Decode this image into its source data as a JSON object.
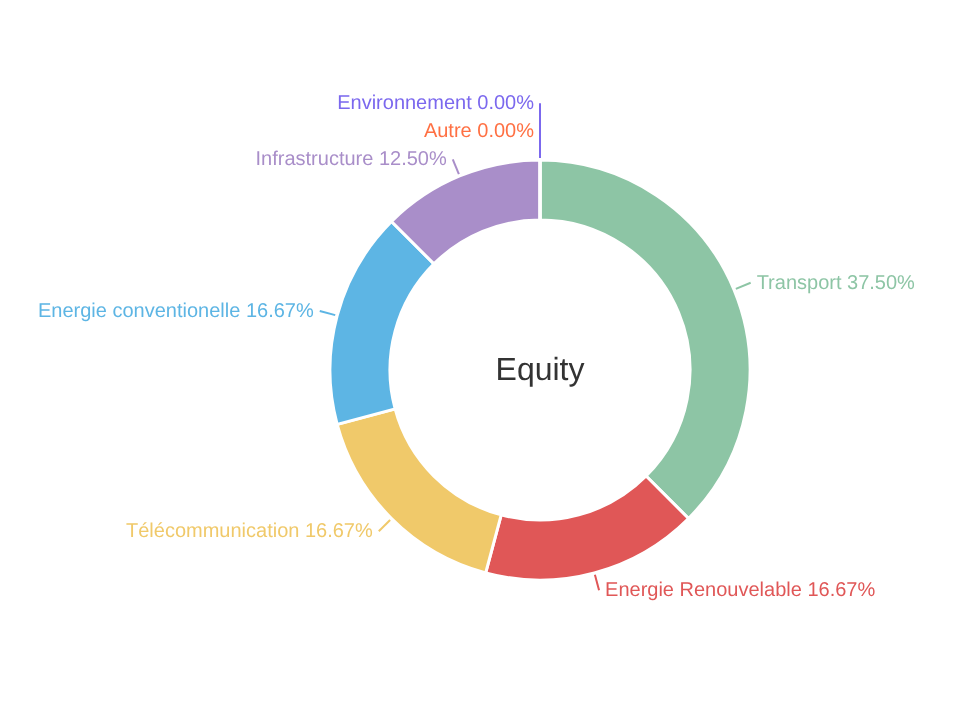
{
  "chart_data": {
    "type": "donut",
    "title": "Equity",
    "categories": [
      "Transport",
      "Energie Renouvelable",
      "Télécommunication",
      "Energie conventionelle",
      "Infrastructure",
      "Autre",
      "Environnement"
    ],
    "values": [
      37.5,
      16.67,
      16.67,
      16.67,
      12.5,
      0,
      0
    ],
    "value_labels": [
      "37.50%",
      "16.67%",
      "16.67%",
      "16.67%",
      "12.50%",
      "0.00%",
      "0.00%"
    ],
    "colors": [
      "#8dc5a5",
      "#e05757",
      "#f0c96a",
      "#5db5e4",
      "#a98ec9",
      "#ff7043",
      "#7b68ee"
    ]
  }
}
